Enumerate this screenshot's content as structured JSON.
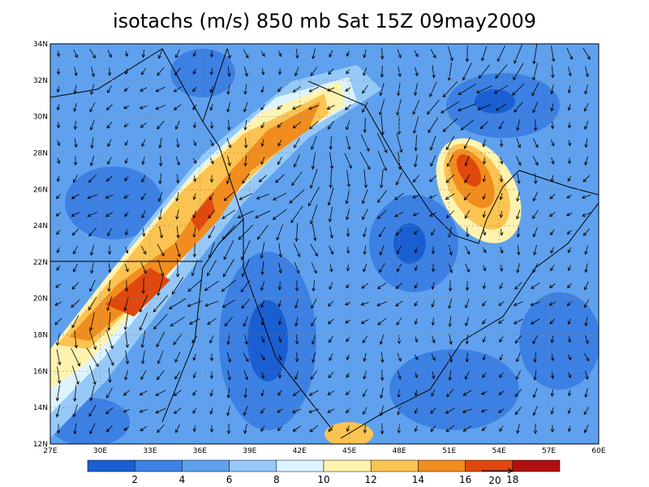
{
  "title": "isotachs (m/s) 850 mb Sat 15Z 09may2009",
  "lat_labels": [
    "12N",
    "14N",
    "16N",
    "18N",
    "20N",
    "22N",
    "24N",
    "26N",
    "28N",
    "30N",
    "32N",
    "34N"
  ],
  "lon_labels": [
    "27E",
    "30E",
    "33E",
    "36E",
    "39E",
    "42E",
    "45E",
    "48E",
    "51E",
    "54E",
    "57E",
    "60E"
  ],
  "colorbar": {
    "colors": [
      "#1a5fd1",
      "#3d80e3",
      "#5fa1ee",
      "#96c9f8",
      "#dcf4ff",
      "#fff3b0",
      "#fbc452",
      "#f08d1e",
      "#e0480e",
      "#b01010"
    ],
    "labels": [
      2,
      4,
      6,
      8,
      10,
      12,
      14,
      16,
      18
    ]
  },
  "vector_reference": "20"
}
